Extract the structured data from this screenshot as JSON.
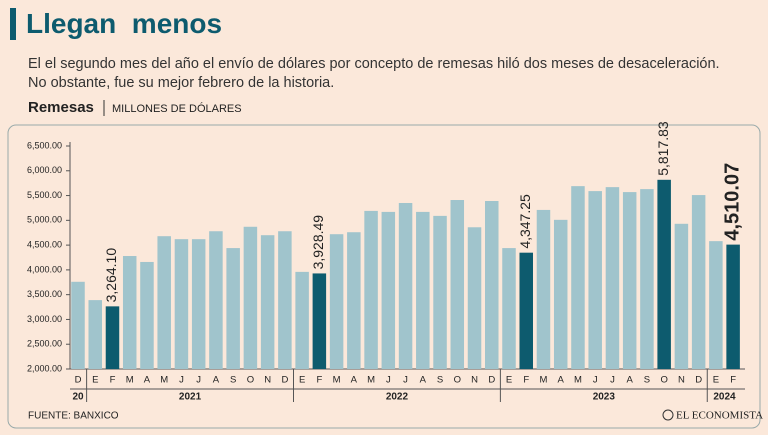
{
  "chart_data": {
    "type": "bar",
    "title": "Llegan  menos",
    "subtitle": "El el segundo mes del año el envío de dólares por concepto de remesas hiló dos meses de desaceleración. No obstante, fue su mejor febrero de la historia.",
    "y_label": "Remesas",
    "y_unit": "MILLONES DE DÓLARES",
    "source": "FUENTE: BANXICO",
    "brand": "EL ECONOMISTA",
    "categories": [
      "D",
      "E",
      "F",
      "M",
      "A",
      "M",
      "J",
      "J",
      "A",
      "S",
      "O",
      "N",
      "D",
      "E",
      "F",
      "M",
      "A",
      "M",
      "J",
      "J",
      "A",
      "S",
      "O",
      "N",
      "D",
      "E",
      "F",
      "M",
      "A",
      "M",
      "J",
      "J",
      "A",
      "S",
      "O",
      "N",
      "D",
      "E",
      "F"
    ],
    "groups": [
      {
        "label": "20",
        "size": 1
      },
      {
        "label": "2021",
        "size": 12
      },
      {
        "label": "2022",
        "size": 12
      },
      {
        "label": "2023",
        "size": 12
      },
      {
        "label": "2024",
        "size": 2
      }
    ],
    "values": [
      3760,
      3390,
      3264.1,
      4280,
      4160,
      4680,
      4620,
      4620,
      4780,
      4440,
      4870,
      4700,
      4780,
      3960,
      3928.49,
      4720,
      4760,
      5190,
      5170,
      5350,
      5170,
      5090,
      5410,
      4860,
      5390,
      4440,
      4347.25,
      5210,
      5010,
      5690,
      5590,
      5670,
      5570,
      5630,
      5817.83,
      4930,
      5510,
      4580,
      4510.07
    ],
    "value_labels": [
      null,
      null,
      "3,264.10",
      null,
      null,
      null,
      null,
      null,
      null,
      null,
      null,
      null,
      null,
      null,
      "3,928.49",
      null,
      null,
      null,
      null,
      null,
      null,
      null,
      null,
      null,
      null,
      null,
      "4,347.25",
      null,
      null,
      null,
      null,
      null,
      null,
      null,
      "5,817.83",
      null,
      null,
      null,
      "4,510.07"
    ],
    "colors": [
      "#a0c4cc",
      "#a0c4cc",
      "#0d5b6e",
      "#a0c4cc",
      "#a0c4cc",
      "#a0c4cc",
      "#a0c4cc",
      "#a0c4cc",
      "#a0c4cc",
      "#a0c4cc",
      "#a0c4cc",
      "#a0c4cc",
      "#a0c4cc",
      "#a0c4cc",
      "#0d5b6e",
      "#a0c4cc",
      "#a0c4cc",
      "#a0c4cc",
      "#a0c4cc",
      "#a0c4cc",
      "#a0c4cc",
      "#a0c4cc",
      "#a0c4cc",
      "#a0c4cc",
      "#a0c4cc",
      "#a0c4cc",
      "#0d5b6e",
      "#a0c4cc",
      "#a0c4cc",
      "#a0c4cc",
      "#a0c4cc",
      "#a0c4cc",
      "#a0c4cc",
      "#a0c4cc",
      "#0d5b6e",
      "#a0c4cc",
      "#a0c4cc",
      "#a0c4cc",
      "#0d5b6e"
    ],
    "ylim": [
      2000,
      6500
    ],
    "yticks": [
      {
        "value": 2000,
        "label": "2,000.00"
      },
      {
        "value": 2500,
        "label": "2,500.00"
      },
      {
        "value": 3000,
        "label": "3,000.00"
      },
      {
        "value": 3500,
        "label": "3,500.00"
      },
      {
        "value": 4000,
        "label": "4,000.00"
      },
      {
        "value": 4500,
        "label": "4,500.00"
      },
      {
        "value": 5000,
        "label": "5,000.00"
      },
      {
        "value": 5500,
        "label": "5,500.00"
      },
      {
        "value": 6000,
        "label": "6,000.00"
      },
      {
        "value": 6500,
        "label": "6,500.00"
      }
    ]
  }
}
